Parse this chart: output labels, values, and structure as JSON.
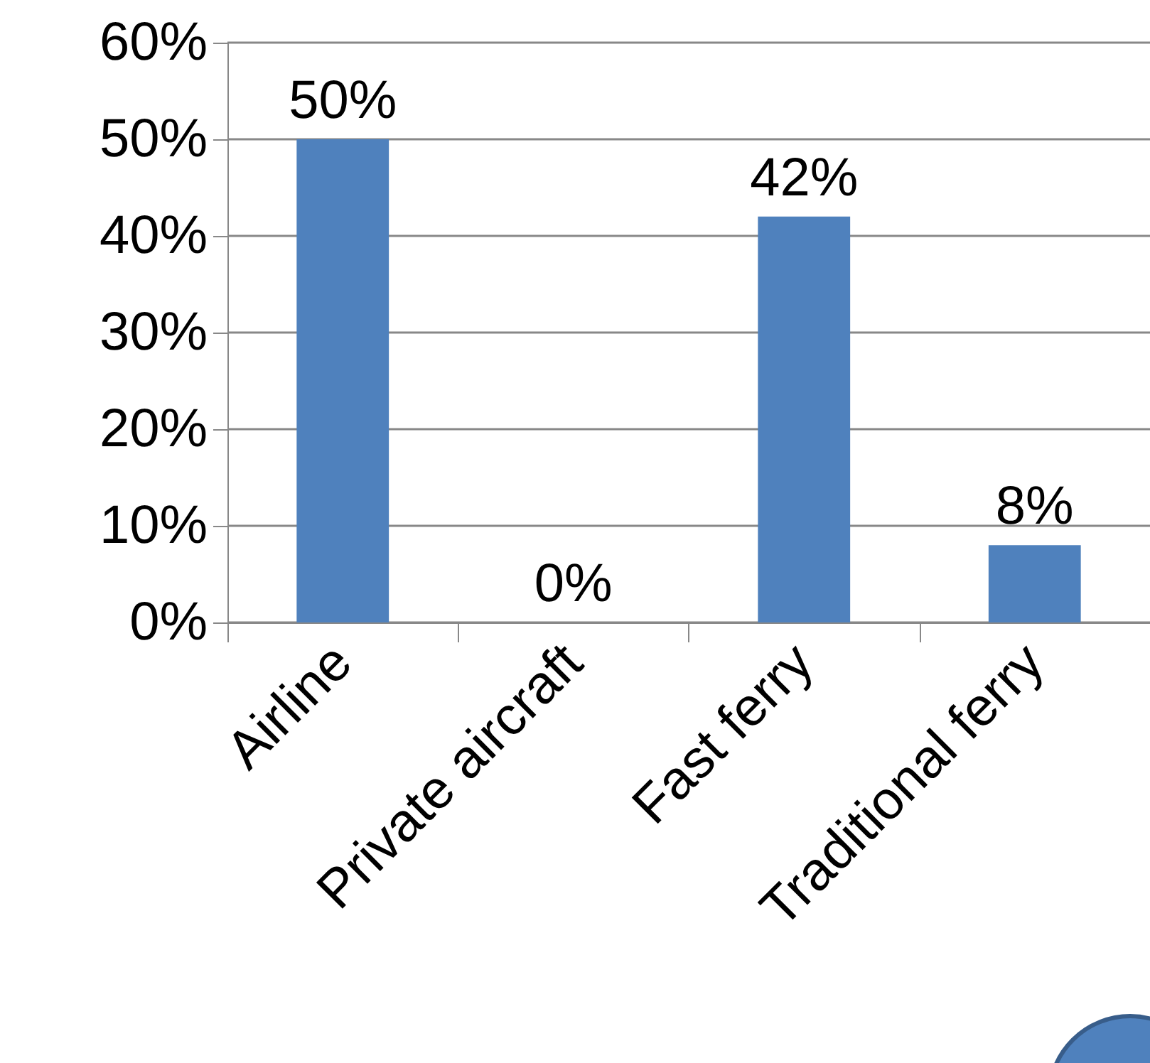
{
  "chart_data": {
    "type": "bar",
    "categories": [
      "Airline",
      "Private aircraft",
      "Fast ferry",
      "Traditional ferry"
    ],
    "values": [
      50,
      0,
      42,
      8
    ],
    "color": "#4f81bd",
    "value_labels": [
      "50%",
      "0%",
      "42%",
      "8%"
    ],
    "ylim": [
      0,
      60
    ],
    "yticks": [
      {
        "value": 0,
        "label": "0%"
      },
      {
        "value": 10,
        "label": "10%"
      },
      {
        "value": 20,
        "label": "20%"
      },
      {
        "value": 30,
        "label": "30%"
      },
      {
        "value": 40,
        "label": "40%"
      },
      {
        "value": 50,
        "label": "50%"
      },
      {
        "value": 60,
        "label": "60%"
      }
    ],
    "grid": "y"
  }
}
